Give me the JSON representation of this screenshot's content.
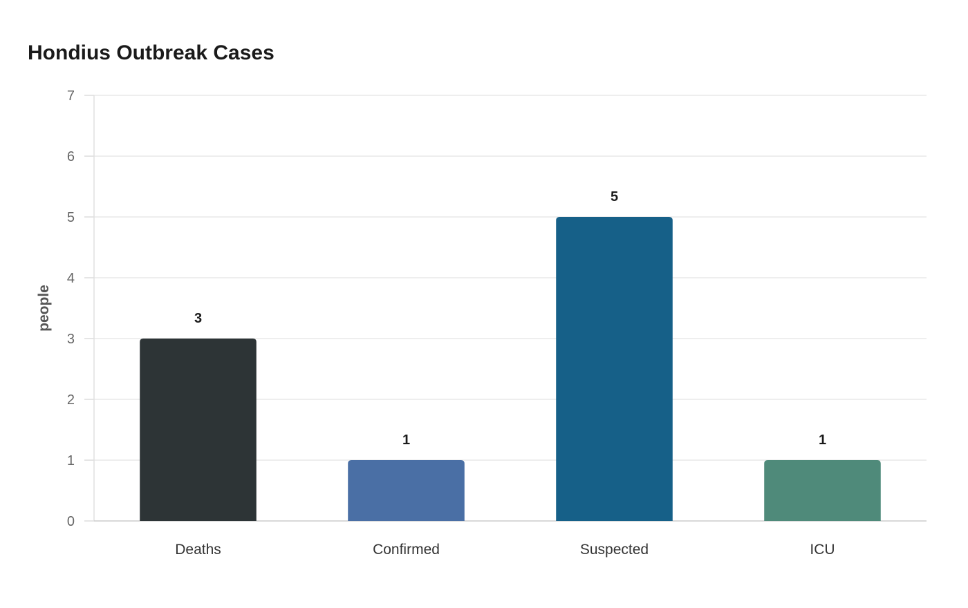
{
  "chart_data": {
    "type": "bar",
    "title": "Hondius Outbreak Cases",
    "xlabel": "",
    "ylabel": "people",
    "categories": [
      "Deaths",
      "Confirmed",
      "Suspected",
      "ICU"
    ],
    "values": [
      3,
      1,
      5,
      1
    ],
    "colors": [
      "#2d3436",
      "#4a6fa5",
      "#166088",
      "#4f8a7a"
    ],
    "ylim": [
      0,
      7
    ],
    "yticks": [
      0,
      1,
      2,
      3,
      4,
      5,
      6,
      7
    ],
    "grid": true,
    "legend": "none"
  }
}
